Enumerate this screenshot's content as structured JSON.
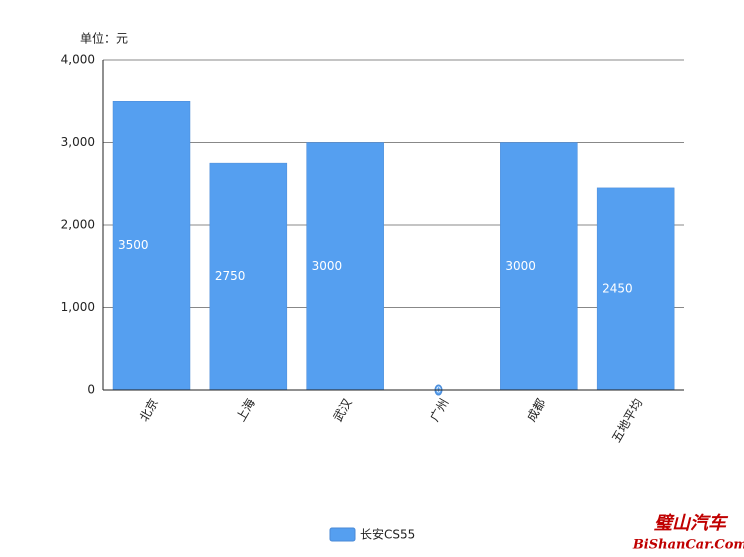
{
  "chart_data": {
    "type": "bar",
    "unit_label": "单位：元",
    "categories": [
      "北京",
      "上海",
      "武汉",
      "广州",
      "成都",
      "五地平均"
    ],
    "series": [
      {
        "name": "长安CS55",
        "color": "#559ff0",
        "values": [
          3500,
          2750,
          3000,
          0,
          3000,
          2450
        ]
      }
    ],
    "ylim": [
      0,
      4000
    ],
    "yticks": [
      0,
      {
        "value": 1000,
        "label": "1,000"
      },
      {
        "value": 2000,
        "label": "2,000"
      },
      {
        "value": 3000,
        "label": "3,000"
      },
      {
        "value": 4000,
        "label": "4,000"
      }
    ],
    "grid": true,
    "legend": "bottom",
    "watermark": {
      "title": "璧山汽车",
      "site": "BiShanCar.Com"
    }
  }
}
